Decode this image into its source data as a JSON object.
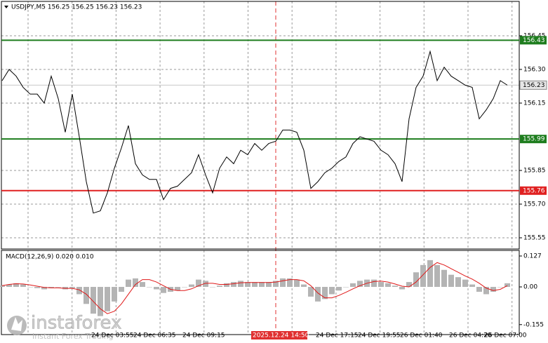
{
  "chart_data": [
    {
      "type": "line",
      "title": "USDJPY,M5  156.25 156.25 156.23 156.23",
      "color": "#000000",
      "categories": [
        null,
        null,
        null,
        null,
        null,
        null,
        null,
        null,
        null,
        null,
        null,
        null,
        null,
        null,
        null,
        null,
        "24 Dec 03:55",
        null,
        null,
        null,
        null,
        null,
        "24 Dec 06:35",
        null,
        null,
        null,
        null,
        null,
        null,
        "24 Dec 09:15",
        null,
        null,
        null,
        null,
        null,
        null,
        null,
        null,
        null,
        "2025.12.24 14:50",
        null,
        null,
        null,
        null,
        null,
        null,
        null,
        null,
        "24 Dec 17:15",
        null,
        null,
        null,
        null,
        null,
        "24 Dec 19:55",
        null,
        null,
        null,
        null,
        null,
        "26 Dec 01:40",
        null,
        null,
        null,
        null,
        null,
        null,
        "26 Dec 04:20",
        null,
        null,
        null,
        null,
        "26 Dec 07:00"
      ],
      "values": [
        156.25,
        156.3,
        156.27,
        156.22,
        156.19,
        156.19,
        156.15,
        156.27,
        156.17,
        156.02,
        156.19,
        156.0,
        155.8,
        155.66,
        155.67,
        155.75,
        155.86,
        155.95,
        156.05,
        155.88,
        155.83,
        155.81,
        155.81,
        155.72,
        155.77,
        155.78,
        155.81,
        155.84,
        155.92,
        155.83,
        155.75,
        155.86,
        155.91,
        155.88,
        155.94,
        155.92,
        155.97,
        155.94,
        155.97,
        155.98,
        156.03,
        156.03,
        156.02,
        155.94,
        155.77,
        155.8,
        155.84,
        155.86,
        155.89,
        155.91,
        155.97,
        156.0,
        155.99,
        155.98,
        155.94,
        155.92,
        155.88,
        155.8,
        156.08,
        156.22,
        156.27,
        156.38,
        156.25,
        156.31,
        156.27,
        156.25,
        156.23,
        156.22,
        156.08,
        156.12,
        156.17,
        156.25,
        156.23
      ],
      "ylim": [
        155.5,
        156.603
      ],
      "yticks": [
        156.45,
        {
          "value": 156.3,
          "label": "156.30"
        },
        156.15,
        155.85,
        {
          "value": 155.7,
          "label": "155.70"
        },
        155.55
      ],
      "grid": true,
      "cursor_index": 39,
      "cursor_color": "#e03030",
      "levels": [
        {
          "value": 156.43,
          "color": "#1e7d1e"
        },
        {
          "value": 155.99,
          "color": "#1e7d1e"
        },
        {
          "value": 155.76,
          "color": "#e02020"
        }
      ]
    },
    {
      "type": "macd",
      "title": "MACD(12,26,9) 0.020 0.010",
      "histogram": {
        "color": "#b4b4b4",
        "values": [
          0.005,
          0.01,
          0.015,
          0.01,
          0.0,
          -0.005,
          -0.01,
          -0.005,
          0.0,
          -0.01,
          -0.005,
          -0.03,
          -0.07,
          -0.11,
          -0.12,
          -0.1,
          -0.06,
          -0.02,
          0.03,
          0.035,
          0.02,
          0.0,
          -0.01,
          -0.025,
          -0.02,
          -0.015,
          0.0,
          0.01,
          0.03,
          0.025,
          0.0,
          0.005,
          0.015,
          0.02,
          0.025,
          0.02,
          0.02,
          0.02,
          0.02,
          0.025,
          0.035,
          0.035,
          0.03,
          0.01,
          -0.04,
          -0.06,
          -0.05,
          -0.03,
          -0.015,
          0.0,
          0.015,
          0.025,
          0.03,
          0.03,
          0.02,
          0.015,
          0.005,
          -0.01,
          0.02,
          0.06,
          0.09,
          0.11,
          0.09,
          0.07,
          0.05,
          0.04,
          0.03,
          0.01,
          -0.02,
          -0.03,
          -0.02,
          0.0,
          0.015
        ]
      },
      "signal": {
        "color": "#e01818",
        "values": [
          0.005,
          0.01,
          0.013,
          0.012,
          0.008,
          0.003,
          -0.002,
          -0.004,
          -0.004,
          -0.006,
          -0.006,
          -0.012,
          -0.03,
          -0.06,
          -0.09,
          -0.11,
          -0.1,
          -0.07,
          -0.03,
          0.01,
          0.03,
          0.03,
          0.02,
          0.005,
          -0.01,
          -0.015,
          -0.015,
          -0.008,
          0.005,
          0.015,
          0.015,
          0.01,
          0.01,
          0.013,
          0.017,
          0.018,
          0.018,
          0.018,
          0.018,
          0.02,
          0.025,
          0.03,
          0.03,
          0.025,
          0.005,
          -0.025,
          -0.045,
          -0.045,
          -0.035,
          -0.022,
          -0.008,
          0.005,
          0.015,
          0.022,
          0.024,
          0.02,
          0.012,
          0.003,
          0.0,
          0.02,
          0.05,
          0.08,
          0.1,
          0.09,
          0.075,
          0.06,
          0.045,
          0.032,
          0.015,
          -0.005,
          -0.015,
          -0.01,
          0.005
        ]
      },
      "ylim": [
        -0.196,
        0.15
      ],
      "yticks": [
        0.127,
        {
          "value": 0,
          "label": "0.00"
        },
        -0.155
      ]
    }
  ],
  "watermark": {
    "name": "instaforex",
    "tagline": "Instant Forex Trading"
  }
}
